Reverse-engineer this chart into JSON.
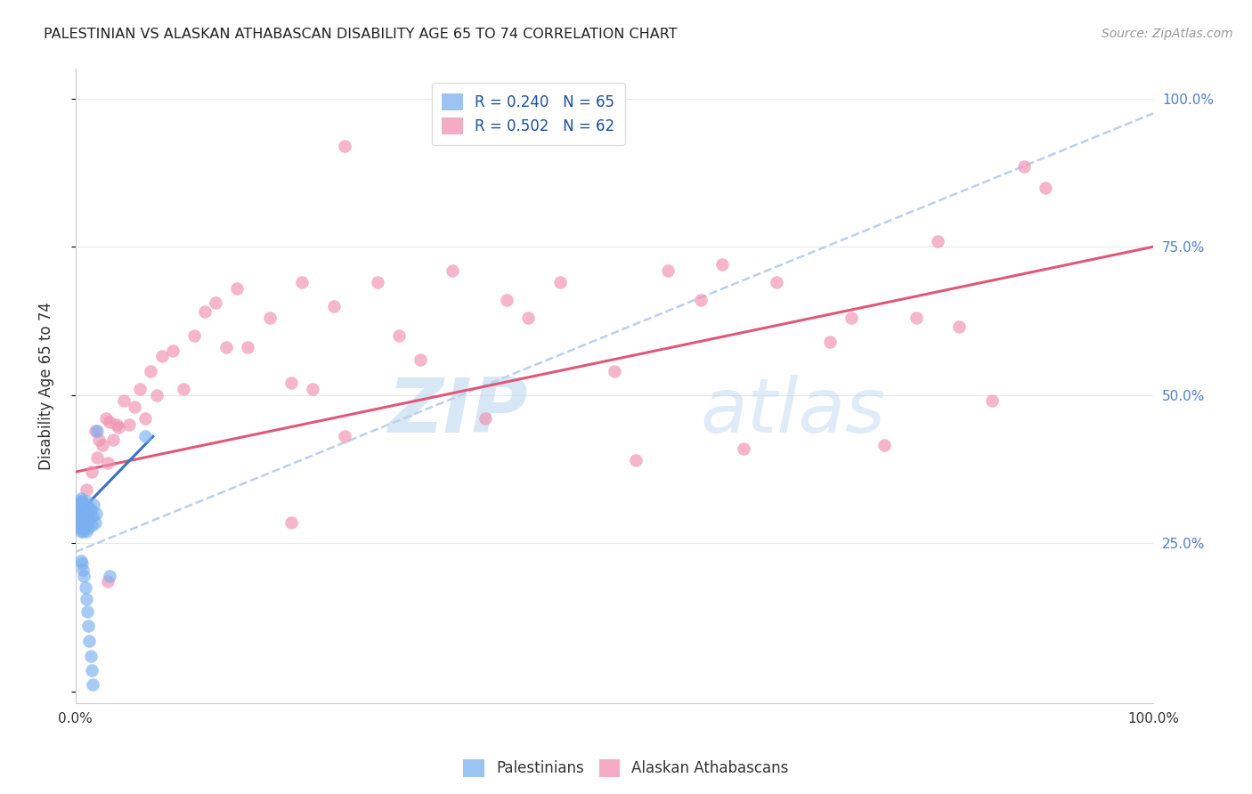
{
  "title": "PALESTINIAN VS ALASKAN ATHABASCAN DISABILITY AGE 65 TO 74 CORRELATION CHART",
  "source": "Source: ZipAtlas.com",
  "ylabel": "Disability Age 65 to 74",
  "xlim": [
    0,
    1
  ],
  "ylim": [
    -0.02,
    1.05
  ],
  "watermark_text": "ZIPatlas",
  "legend_entries": [
    {
      "label": "R = 0.240   N = 65",
      "color": "#a8c8f8"
    },
    {
      "label": "R = 0.502   N = 62",
      "color": "#f8a8c0"
    }
  ],
  "blue_color": "#7ab0f0",
  "pink_color": "#f090b0",
  "blue_line_color": "#3a70c8",
  "pink_line_color": "#e05878",
  "dashed_line_color": "#b0c8e8",
  "background_color": "#ffffff",
  "grid_color": "#e8e8e8",
  "right_tick_color": "#5080c8",
  "blue_scatter": [
    [
      0.002,
      0.295
    ],
    [
      0.003,
      0.305
    ],
    [
      0.003,
      0.285
    ],
    [
      0.003,
      0.315
    ],
    [
      0.004,
      0.29
    ],
    [
      0.004,
      0.3
    ],
    [
      0.004,
      0.32
    ],
    [
      0.004,
      0.275
    ],
    [
      0.005,
      0.295
    ],
    [
      0.005,
      0.305
    ],
    [
      0.005,
      0.28
    ],
    [
      0.005,
      0.315
    ],
    [
      0.005,
      0.325
    ],
    [
      0.005,
      0.27
    ],
    [
      0.006,
      0.295
    ],
    [
      0.006,
      0.305
    ],
    [
      0.006,
      0.285
    ],
    [
      0.006,
      0.31
    ],
    [
      0.006,
      0.275
    ],
    [
      0.006,
      0.32
    ],
    [
      0.007,
      0.3
    ],
    [
      0.007,
      0.29
    ],
    [
      0.007,
      0.315
    ],
    [
      0.007,
      0.28
    ],
    [
      0.007,
      0.27
    ],
    [
      0.007,
      0.295
    ],
    [
      0.008,
      0.305
    ],
    [
      0.008,
      0.285
    ],
    [
      0.008,
      0.31
    ],
    [
      0.008,
      0.275
    ],
    [
      0.009,
      0.295
    ],
    [
      0.009,
      0.3
    ],
    [
      0.009,
      0.315
    ],
    [
      0.009,
      0.28
    ],
    [
      0.01,
      0.29
    ],
    [
      0.01,
      0.305
    ],
    [
      0.01,
      0.27
    ],
    [
      0.01,
      0.32
    ],
    [
      0.011,
      0.295
    ],
    [
      0.011,
      0.285
    ],
    [
      0.012,
      0.3
    ],
    [
      0.012,
      0.275
    ],
    [
      0.013,
      0.31
    ],
    [
      0.013,
      0.29
    ],
    [
      0.014,
      0.305
    ],
    [
      0.015,
      0.28
    ],
    [
      0.016,
      0.295
    ],
    [
      0.017,
      0.315
    ],
    [
      0.018,
      0.285
    ],
    [
      0.019,
      0.3
    ],
    [
      0.005,
      0.22
    ],
    [
      0.006,
      0.215
    ],
    [
      0.007,
      0.205
    ],
    [
      0.008,
      0.195
    ],
    [
      0.009,
      0.175
    ],
    [
      0.01,
      0.155
    ],
    [
      0.011,
      0.135
    ],
    [
      0.012,
      0.11
    ],
    [
      0.013,
      0.085
    ],
    [
      0.014,
      0.06
    ],
    [
      0.015,
      0.035
    ],
    [
      0.016,
      0.012
    ],
    [
      0.065,
      0.43
    ],
    [
      0.02,
      0.44
    ],
    [
      0.032,
      0.195
    ]
  ],
  "pink_scatter": [
    [
      0.005,
      0.295
    ],
    [
      0.01,
      0.34
    ],
    [
      0.015,
      0.37
    ],
    [
      0.018,
      0.44
    ],
    [
      0.02,
      0.395
    ],
    [
      0.022,
      0.425
    ],
    [
      0.025,
      0.415
    ],
    [
      0.028,
      0.46
    ],
    [
      0.03,
      0.385
    ],
    [
      0.032,
      0.455
    ],
    [
      0.035,
      0.425
    ],
    [
      0.038,
      0.45
    ],
    [
      0.04,
      0.445
    ],
    [
      0.045,
      0.49
    ],
    [
      0.05,
      0.45
    ],
    [
      0.055,
      0.48
    ],
    [
      0.06,
      0.51
    ],
    [
      0.065,
      0.46
    ],
    [
      0.07,
      0.54
    ],
    [
      0.075,
      0.5
    ],
    [
      0.08,
      0.565
    ],
    [
      0.09,
      0.575
    ],
    [
      0.1,
      0.51
    ],
    [
      0.11,
      0.6
    ],
    [
      0.12,
      0.64
    ],
    [
      0.13,
      0.655
    ],
    [
      0.14,
      0.58
    ],
    [
      0.15,
      0.68
    ],
    [
      0.16,
      0.58
    ],
    [
      0.18,
      0.63
    ],
    [
      0.2,
      0.52
    ],
    [
      0.21,
      0.69
    ],
    [
      0.22,
      0.51
    ],
    [
      0.24,
      0.65
    ],
    [
      0.25,
      0.43
    ],
    [
      0.28,
      0.69
    ],
    [
      0.3,
      0.6
    ],
    [
      0.32,
      0.56
    ],
    [
      0.35,
      0.71
    ],
    [
      0.38,
      0.46
    ],
    [
      0.4,
      0.66
    ],
    [
      0.42,
      0.63
    ],
    [
      0.45,
      0.69
    ],
    [
      0.5,
      0.54
    ],
    [
      0.52,
      0.39
    ],
    [
      0.55,
      0.71
    ],
    [
      0.58,
      0.66
    ],
    [
      0.6,
      0.72
    ],
    [
      0.62,
      0.41
    ],
    [
      0.65,
      0.69
    ],
    [
      0.7,
      0.59
    ],
    [
      0.72,
      0.63
    ],
    [
      0.75,
      0.415
    ],
    [
      0.78,
      0.63
    ],
    [
      0.8,
      0.76
    ],
    [
      0.82,
      0.615
    ],
    [
      0.85,
      0.49
    ],
    [
      0.88,
      0.885
    ],
    [
      0.03,
      0.185
    ],
    [
      0.2,
      0.285
    ],
    [
      0.25,
      0.92
    ],
    [
      0.9,
      0.85
    ]
  ],
  "blue_trend_x": [
    0.0,
    0.072
  ],
  "blue_trend_y": [
    0.295,
    0.43
  ],
  "pink_trend_x": [
    0.0,
    1.0
  ],
  "pink_trend_y": [
    0.37,
    0.75
  ],
  "dashed_trend_x": [
    0.0,
    1.0
  ],
  "dashed_trend_y": [
    0.235,
    0.975
  ]
}
